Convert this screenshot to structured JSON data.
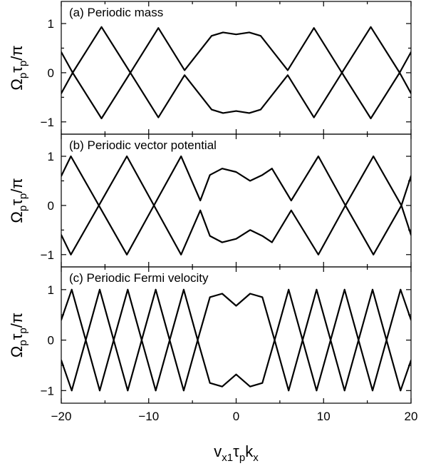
{
  "chart_data": [
    {
      "type": "line",
      "title": "(a) Periodic mass",
      "ylabel": [
        "Ω",
        "p",
        "τ",
        "p",
        "/π"
      ],
      "xlim": [
        -20,
        20
      ],
      "ylim": [
        -1.25,
        1.45
      ],
      "yticks": [
        -1,
        0,
        1
      ],
      "series": [
        {
          "x": [
            -20,
            -18.7,
            -15.4,
            -12.1,
            -8.9,
            -5.9,
            -2.8,
            -1.5,
            0,
            1.5,
            2.8,
            5.9,
            8.9,
            12.1,
            15.4,
            18.7,
            20
          ],
          "y": [
            0.42,
            0,
            0.93,
            0,
            0.91,
            0.05,
            0.75,
            0.82,
            0.78,
            0.82,
            0.75,
            0.05,
            0.91,
            0,
            0.93,
            0,
            0.42
          ]
        },
        {
          "x": [
            -20,
            -18.7,
            -15.4,
            -12.1,
            -8.9,
            -5.9,
            -2.8,
            -1.5,
            0,
            1.5,
            2.8,
            5.9,
            8.9,
            12.1,
            15.4,
            18.7,
            20
          ],
          "y": [
            -0.42,
            0,
            -0.93,
            0,
            -0.91,
            -0.05,
            -0.75,
            -0.82,
            -0.78,
            -0.82,
            -0.75,
            -0.05,
            -0.91,
            0,
            -0.93,
            0,
            -0.42
          ]
        }
      ]
    },
    {
      "type": "line",
      "title": "(b) Periodic vector potential",
      "ylabel": [
        "Ω",
        "p",
        "τ",
        "p",
        "/π"
      ],
      "xlim": [
        -20,
        20
      ],
      "ylim": [
        -1.25,
        1.45
      ],
      "yticks": [
        -1,
        0,
        1
      ],
      "series": [
        {
          "x": [
            -20,
            -18.9,
            -15.7,
            -12.5,
            -9.4,
            -6.3,
            -4.1,
            -3.0,
            -1.6,
            0,
            1.6,
            3.0,
            4.1,
            6.3,
            9.4,
            12.5,
            15.7,
            18.9,
            20
          ],
          "y": [
            0.6,
            1,
            0,
            1,
            0,
            1,
            0.1,
            0.62,
            0.75,
            0.68,
            0.5,
            0.62,
            0.75,
            0.1,
            1,
            0,
            1,
            0,
            0.6
          ]
        },
        {
          "x": [
            -20,
            -18.9,
            -15.7,
            -12.5,
            -9.4,
            -6.3,
            -4.1,
            -3.0,
            -1.6,
            0,
            1.6,
            3.0,
            4.1,
            6.3,
            9.4,
            12.5,
            15.7,
            18.9,
            20
          ],
          "y": [
            -0.6,
            -1,
            0,
            -1,
            0,
            -1,
            -0.1,
            -0.62,
            -0.75,
            -0.68,
            -0.5,
            -0.62,
            -0.75,
            -0.1,
            -1,
            0,
            -1,
            0,
            -0.6
          ]
        }
      ]
    },
    {
      "type": "line",
      "title": "(c) Periodic Fermi velocity",
      "ylabel": [
        "Ω",
        "p",
        "τ",
        "p",
        "/π"
      ],
      "xlabel": [
        "v",
        "x1",
        "τ",
        "p",
        "k",
        "x"
      ],
      "xlim": [
        -20,
        20
      ],
      "ylim": [
        -1.25,
        1.45
      ],
      "yticks": [
        -1,
        0,
        1
      ],
      "xticks": [
        -20,
        -10,
        0,
        10,
        20
      ],
      "series": [
        {
          "x": [
            -20,
            -18.8,
            -17.2,
            -15.6,
            -14.0,
            -12.4,
            -10.8,
            -9.2,
            -7.6,
            -6.0,
            -4.4,
            -3.0,
            -1.6,
            0,
            1.6,
            3.0,
            4.4,
            6.0,
            7.6,
            9.2,
            10.8,
            12.4,
            14.0,
            15.6,
            17.2,
            18.8,
            20
          ],
          "y": [
            0.4,
            1,
            0,
            1,
            0,
            1,
            0,
            1,
            0,
            1,
            0,
            0.85,
            0.92,
            0.68,
            0.92,
            0.85,
            0,
            1,
            0,
            1,
            0,
            1,
            0,
            1,
            0,
            1,
            0.4
          ]
        },
        {
          "x": [
            -20,
            -18.8,
            -17.2,
            -15.6,
            -14.0,
            -12.4,
            -10.8,
            -9.2,
            -7.6,
            -6.0,
            -4.4,
            -3.0,
            -1.6,
            0,
            1.6,
            3.0,
            4.4,
            6.0,
            7.6,
            9.2,
            10.8,
            12.4,
            14.0,
            15.6,
            17.2,
            18.8,
            20
          ],
          "y": [
            -0.4,
            -1,
            0,
            -1,
            0,
            -1,
            0,
            -1,
            0,
            -1,
            0,
            -0.85,
            -0.92,
            -0.68,
            -0.92,
            -0.85,
            0,
            -1,
            0,
            -1,
            0,
            -1,
            0,
            -1,
            0,
            -1,
            -0.4
          ]
        }
      ]
    }
  ]
}
